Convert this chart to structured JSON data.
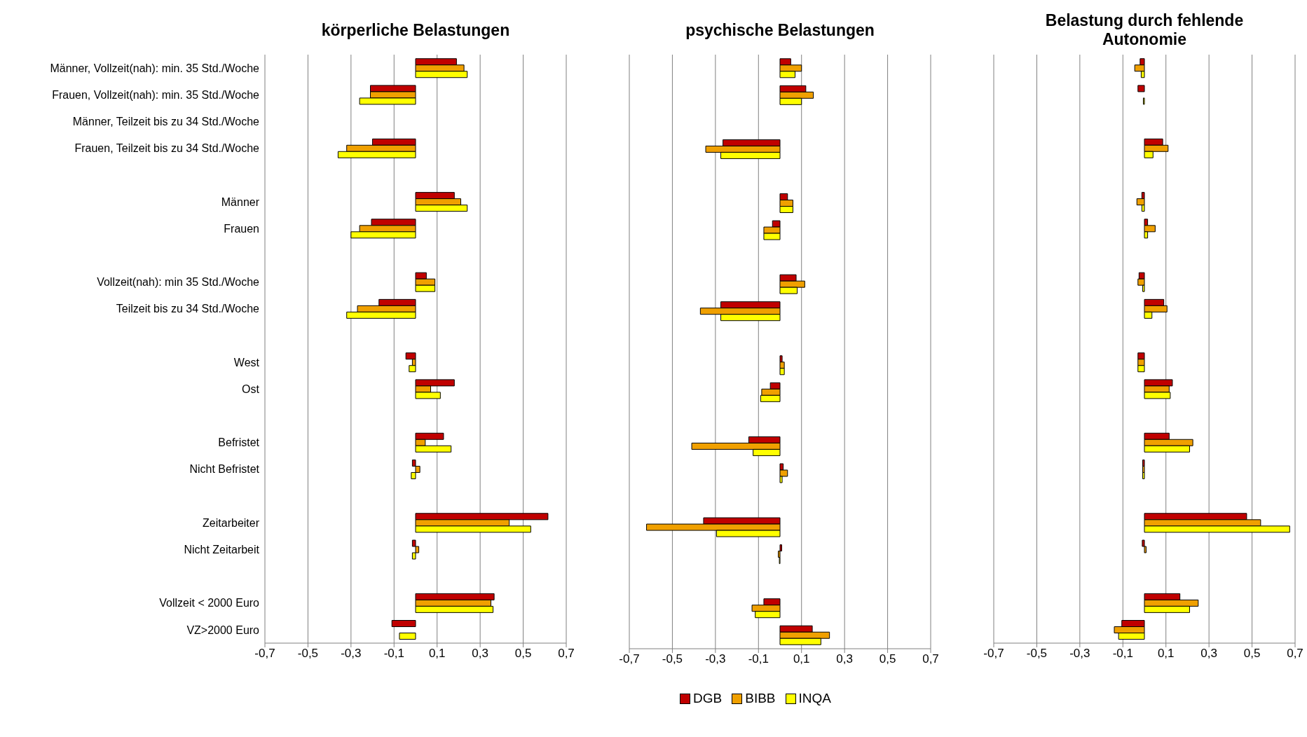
{
  "chart_data": [
    {
      "type": "bar",
      "orientation": "horizontal",
      "title": "körperliche Belastungen",
      "categories": [
        "Männer, Vollzeit(nah): min. 35 Std./Woche",
        "Frauen, Vollzeit(nah): min. 35 Std./Woche",
        "Männer, Teilzeit bis zu 34 Std./Woche",
        "Frauen, Teilzeit bis zu 34 Std./Woche",
        null,
        "Männer",
        "Frauen",
        null,
        "Vollzeit(nah): min 35 Std./Woche",
        "Teilzeit bis zu 34 Std./Woche",
        null,
        "West",
        "Ost",
        null,
        "Befristet",
        "Nicht Befristet",
        null,
        "Zeitarbeiter",
        "Nicht Zeitarbeit",
        null,
        "Vollzeit < 2000 Euro",
        "VZ>2000 Euro"
      ],
      "series": [
        {
          "color": "#c00000",
          "values": [
            0.19,
            -0.21,
            null,
            -0.2,
            null,
            0.18,
            -0.205,
            null,
            0.05,
            -0.17,
            null,
            -0.045,
            0.18,
            null,
            0.13,
            -0.015,
            null,
            0.615,
            -0.015,
            null,
            0.365,
            -0.11
          ]
        },
        {
          "color": "#f0a000",
          "values": [
            0.225,
            -0.21,
            null,
            -0.32,
            null,
            0.21,
            -0.26,
            null,
            0.09,
            -0.27,
            null,
            -0.015,
            0.07,
            null,
            0.045,
            0.02,
            null,
            0.435,
            0.015,
            null,
            0.35,
            null
          ]
        },
        {
          "color": "#ffff00",
          "values": [
            0.24,
            -0.26,
            null,
            -0.36,
            null,
            0.24,
            -0.3,
            null,
            0.09,
            -0.32,
            null,
            -0.03,
            0.115,
            null,
            0.165,
            -0.02,
            null,
            0.535,
            -0.015,
            null,
            0.36,
            -0.075
          ]
        }
      ],
      "xlim": [
        -0.7,
        0.7
      ],
      "xticks": [
        {
          "value": -0.7,
          "label": "-0,7"
        },
        {
          "value": -0.5,
          "label": "-0,5"
        },
        {
          "value": -0.3,
          "label": "-0,3"
        },
        {
          "value": -0.1,
          "label": "-0,1"
        },
        {
          "value": 0.1,
          "label": "0,1"
        },
        {
          "value": 0.3,
          "label": "0,3"
        },
        {
          "value": 0.5,
          "label": "0,5"
        },
        {
          "value": 0.7,
          "label": "0,7"
        }
      ],
      "grid": "x"
    },
    {
      "type": "bar",
      "orientation": "horizontal",
      "title": "psychische Belastungen",
      "categories": [
        null,
        null,
        null,
        null,
        null,
        null,
        null,
        null,
        null,
        null,
        null,
        null,
        null,
        null,
        null,
        null,
        null,
        null,
        null,
        null,
        null,
        null
      ],
      "series": [
        {
          "name": "DGB",
          "color": "#c00000",
          "values": [
            0.05,
            0.12,
            null,
            -0.265,
            null,
            0.035,
            -0.035,
            null,
            0.075,
            -0.275,
            null,
            0.01,
            -0.045,
            null,
            -0.145,
            0.015,
            null,
            -0.355,
            0.008,
            null,
            -0.075,
            0.15
          ]
        },
        {
          "name": "BIBB",
          "color": "#f0a000",
          "values": [
            0.1,
            0.155,
            null,
            -0.345,
            null,
            0.06,
            -0.075,
            null,
            0.115,
            -0.37,
            null,
            0.02,
            -0.085,
            null,
            -0.41,
            0.035,
            null,
            -0.62,
            -0.008,
            null,
            -0.13,
            0.23
          ]
        },
        {
          "name": "INQA",
          "color": "#ffff00",
          "values": [
            0.07,
            0.1,
            null,
            -0.275,
            null,
            0.06,
            -0.075,
            null,
            0.08,
            -0.275,
            null,
            0.02,
            -0.09,
            null,
            -0.125,
            0.01,
            null,
            -0.295,
            -0.003,
            null,
            -0.115,
            0.19
          ]
        }
      ],
      "xlim": [
        -0.7,
        0.7
      ],
      "xticks": [
        {
          "value": -0.7,
          "label": "-0,7"
        },
        {
          "value": -0.5,
          "label": "-0,5"
        },
        {
          "value": -0.3,
          "label": "-0,3"
        },
        {
          "value": -0.1,
          "label": "-0,1"
        },
        {
          "value": 0.1,
          "label": "0,1"
        },
        {
          "value": 0.3,
          "label": "0,3"
        },
        {
          "value": 0.5,
          "label": "0,5"
        },
        {
          "value": 0.7,
          "label": "0,7"
        }
      ],
      "grid": "x",
      "tick_labels": "x",
      "legend": "bottom"
    },
    {
      "type": "bar",
      "orientation": "horizontal",
      "title": "Belastung durch fehlende Autonomie",
      "categories": [
        null,
        null,
        null,
        null,
        null,
        null,
        null,
        null,
        null,
        null,
        null,
        null,
        null,
        null,
        null,
        null,
        null,
        null,
        null,
        null,
        null,
        null
      ],
      "series": [
        {
          "color": "#c00000",
          "values": [
            -0.02,
            -0.03,
            null,
            0.085,
            null,
            -0.012,
            0.015,
            null,
            -0.025,
            0.09,
            null,
            -0.03,
            0.13,
            null,
            0.115,
            -0.008,
            null,
            0.475,
            -0.01,
            null,
            0.165,
            -0.105
          ]
        },
        {
          "color": "#f0a000",
          "values": [
            -0.045,
            null,
            null,
            0.11,
            null,
            -0.035,
            0.05,
            null,
            -0.03,
            0.105,
            null,
            -0.03,
            0.115,
            null,
            0.225,
            -0.008,
            null,
            0.54,
            0.008,
            null,
            0.25,
            -0.14
          ]
        },
        {
          "color": "#ffff00",
          "values": [
            -0.015,
            -0.005,
            null,
            0.04,
            null,
            -0.012,
            0.015,
            null,
            -0.008,
            0.035,
            null,
            -0.03,
            0.12,
            null,
            0.21,
            -0.008,
            null,
            0.675,
            null,
            null,
            0.21,
            -0.12
          ]
        }
      ],
      "xlim": [
        -0.7,
        0.7
      ],
      "xticks": [
        {
          "value": -0.7,
          "label": "-0,7"
        },
        {
          "value": -0.5,
          "label": "-0,5"
        },
        {
          "value": -0.3,
          "label": "-0,3"
        },
        {
          "value": -0.1,
          "label": "-0,1"
        },
        {
          "value": 0.1,
          "label": "0,1"
        },
        {
          "value": 0.3,
          "label": "0,3"
        },
        {
          "value": 0.5,
          "label": "0,5"
        },
        {
          "value": 0.7,
          "label": "0,7"
        }
      ],
      "grid": "x",
      "tick_labels": "x"
    }
  ]
}
